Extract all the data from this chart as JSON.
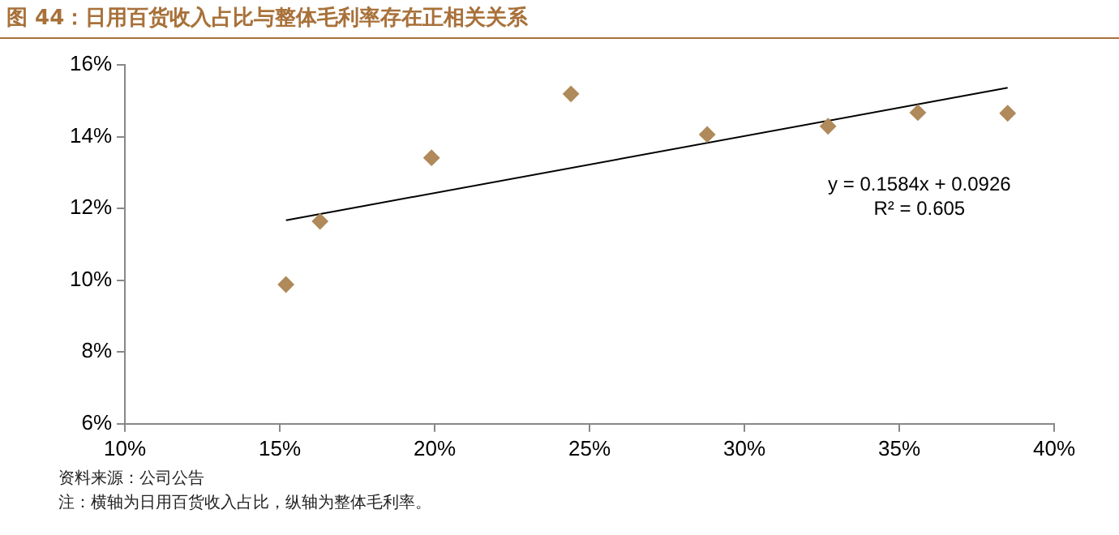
{
  "chart_data": {
    "type": "scatter",
    "title": "图 44：日用百货收入占比与整体毛利率存在正相关关系",
    "series": [
      {
        "type": "scatter",
        "color": "#b08a5a",
        "marker": "diamond",
        "x": [
          15.2,
          16.3,
          19.9,
          24.4,
          28.8,
          32.7,
          35.6,
          38.5
        ],
        "values": [
          9.88,
          11.64,
          13.41,
          15.19,
          14.06,
          14.29,
          14.67,
          14.65
        ]
      },
      {
        "type": "line",
        "color": "#000000",
        "marker": "none",
        "x": [
          15.2,
          38.5
        ],
        "values": [
          11.67,
          15.36
        ]
      }
    ],
    "xlim": [
      10,
      40
    ],
    "xticks": [
      {
        "value": 10,
        "label": "10%"
      },
      {
        "value": 15,
        "label": "15%"
      },
      {
        "value": 20,
        "label": "20%"
      },
      {
        "value": 25,
        "label": "25%"
      },
      {
        "value": 30,
        "label": "30%"
      },
      {
        "value": 35,
        "label": "35%"
      },
      {
        "value": 40,
        "label": "40%"
      }
    ],
    "ylim": [
      6,
      16
    ],
    "yticks": [
      {
        "value": 6,
        "label": "6%"
      },
      {
        "value": 8,
        "label": "8%"
      },
      {
        "value": 10,
        "label": "10%"
      },
      {
        "value": 12,
        "label": "12%"
      },
      {
        "value": 14,
        "label": "14%"
      },
      {
        "value": 16,
        "label": "16%"
      }
    ],
    "grid": false,
    "legend": false,
    "annotations": [
      "y = 0.1584x + 0.0926",
      "R² = 0.605",
      "资料来源：公司公告",
      "注：横轴为日用百货收入占比，纵轴为整体毛利率。"
    ]
  }
}
